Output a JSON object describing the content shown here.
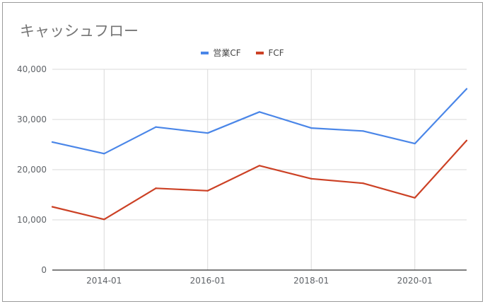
{
  "chart_data": {
    "type": "line",
    "title": "キャッシュフロー",
    "xlabel": "",
    "ylabel": "",
    "x": [
      "2013-01",
      "2014-01",
      "2015-01",
      "2016-01",
      "2017-01",
      "2018-01",
      "2019-01",
      "2020-01",
      "2021-01"
    ],
    "x_tick_labels": [
      "2014-01",
      "2016-01",
      "2018-01",
      "2020-01"
    ],
    "y_tick_labels": [
      "0",
      "10,000",
      "20,000",
      "30,000",
      "40,000"
    ],
    "ylim": [
      0,
      40000
    ],
    "grid": true,
    "legend": "top-center",
    "series": [
      {
        "name": "営業CF",
        "color": "#4a86e8",
        "values": [
          25500,
          23200,
          28500,
          27300,
          31500,
          28300,
          27700,
          25200,
          36100
        ]
      },
      {
        "name": "FCF",
        "color": "#cc4125",
        "values": [
          12600,
          10100,
          16300,
          15800,
          20800,
          18200,
          17300,
          14400,
          25800
        ]
      }
    ]
  }
}
